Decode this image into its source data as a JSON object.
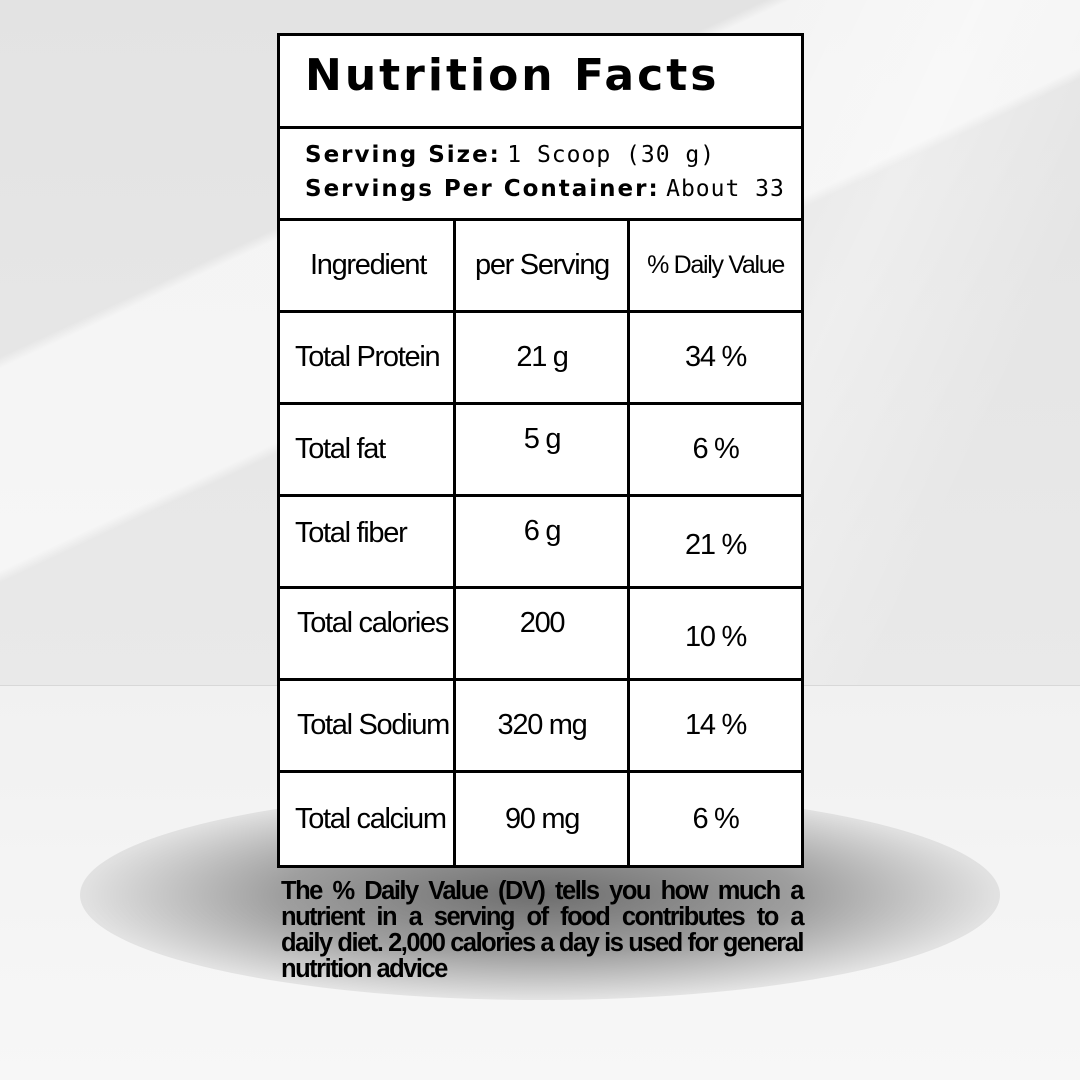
{
  "label": {
    "title": "Nutrition Facts",
    "serving_size_label": "Serving Size:",
    "serving_size_value": "1 Scoop (30 g)",
    "servings_per_container_label": "Servings Per Container:",
    "servings_per_container_value": "About 33"
  },
  "table": {
    "headers": [
      "Ingredient",
      "per Serving",
      "% Daily Value"
    ],
    "rows": [
      [
        "Total Protein",
        "21 g",
        "34 %"
      ],
      [
        "Total fat",
        "5 g",
        "6 %"
      ],
      [
        "Total fiber",
        "6 g",
        "21 %"
      ],
      [
        "Total calories",
        "200",
        "10 %"
      ],
      [
        "Total Sodium",
        "320 mg",
        "14 %"
      ],
      [
        "Total calcium",
        "90 mg",
        "6 %"
      ]
    ]
  },
  "footnote": "The % Daily Value (DV) tells you how much a nutrient in a serving of food contributes to a daily diet. 2,000 calories a day is used for general nutrition advice"
}
